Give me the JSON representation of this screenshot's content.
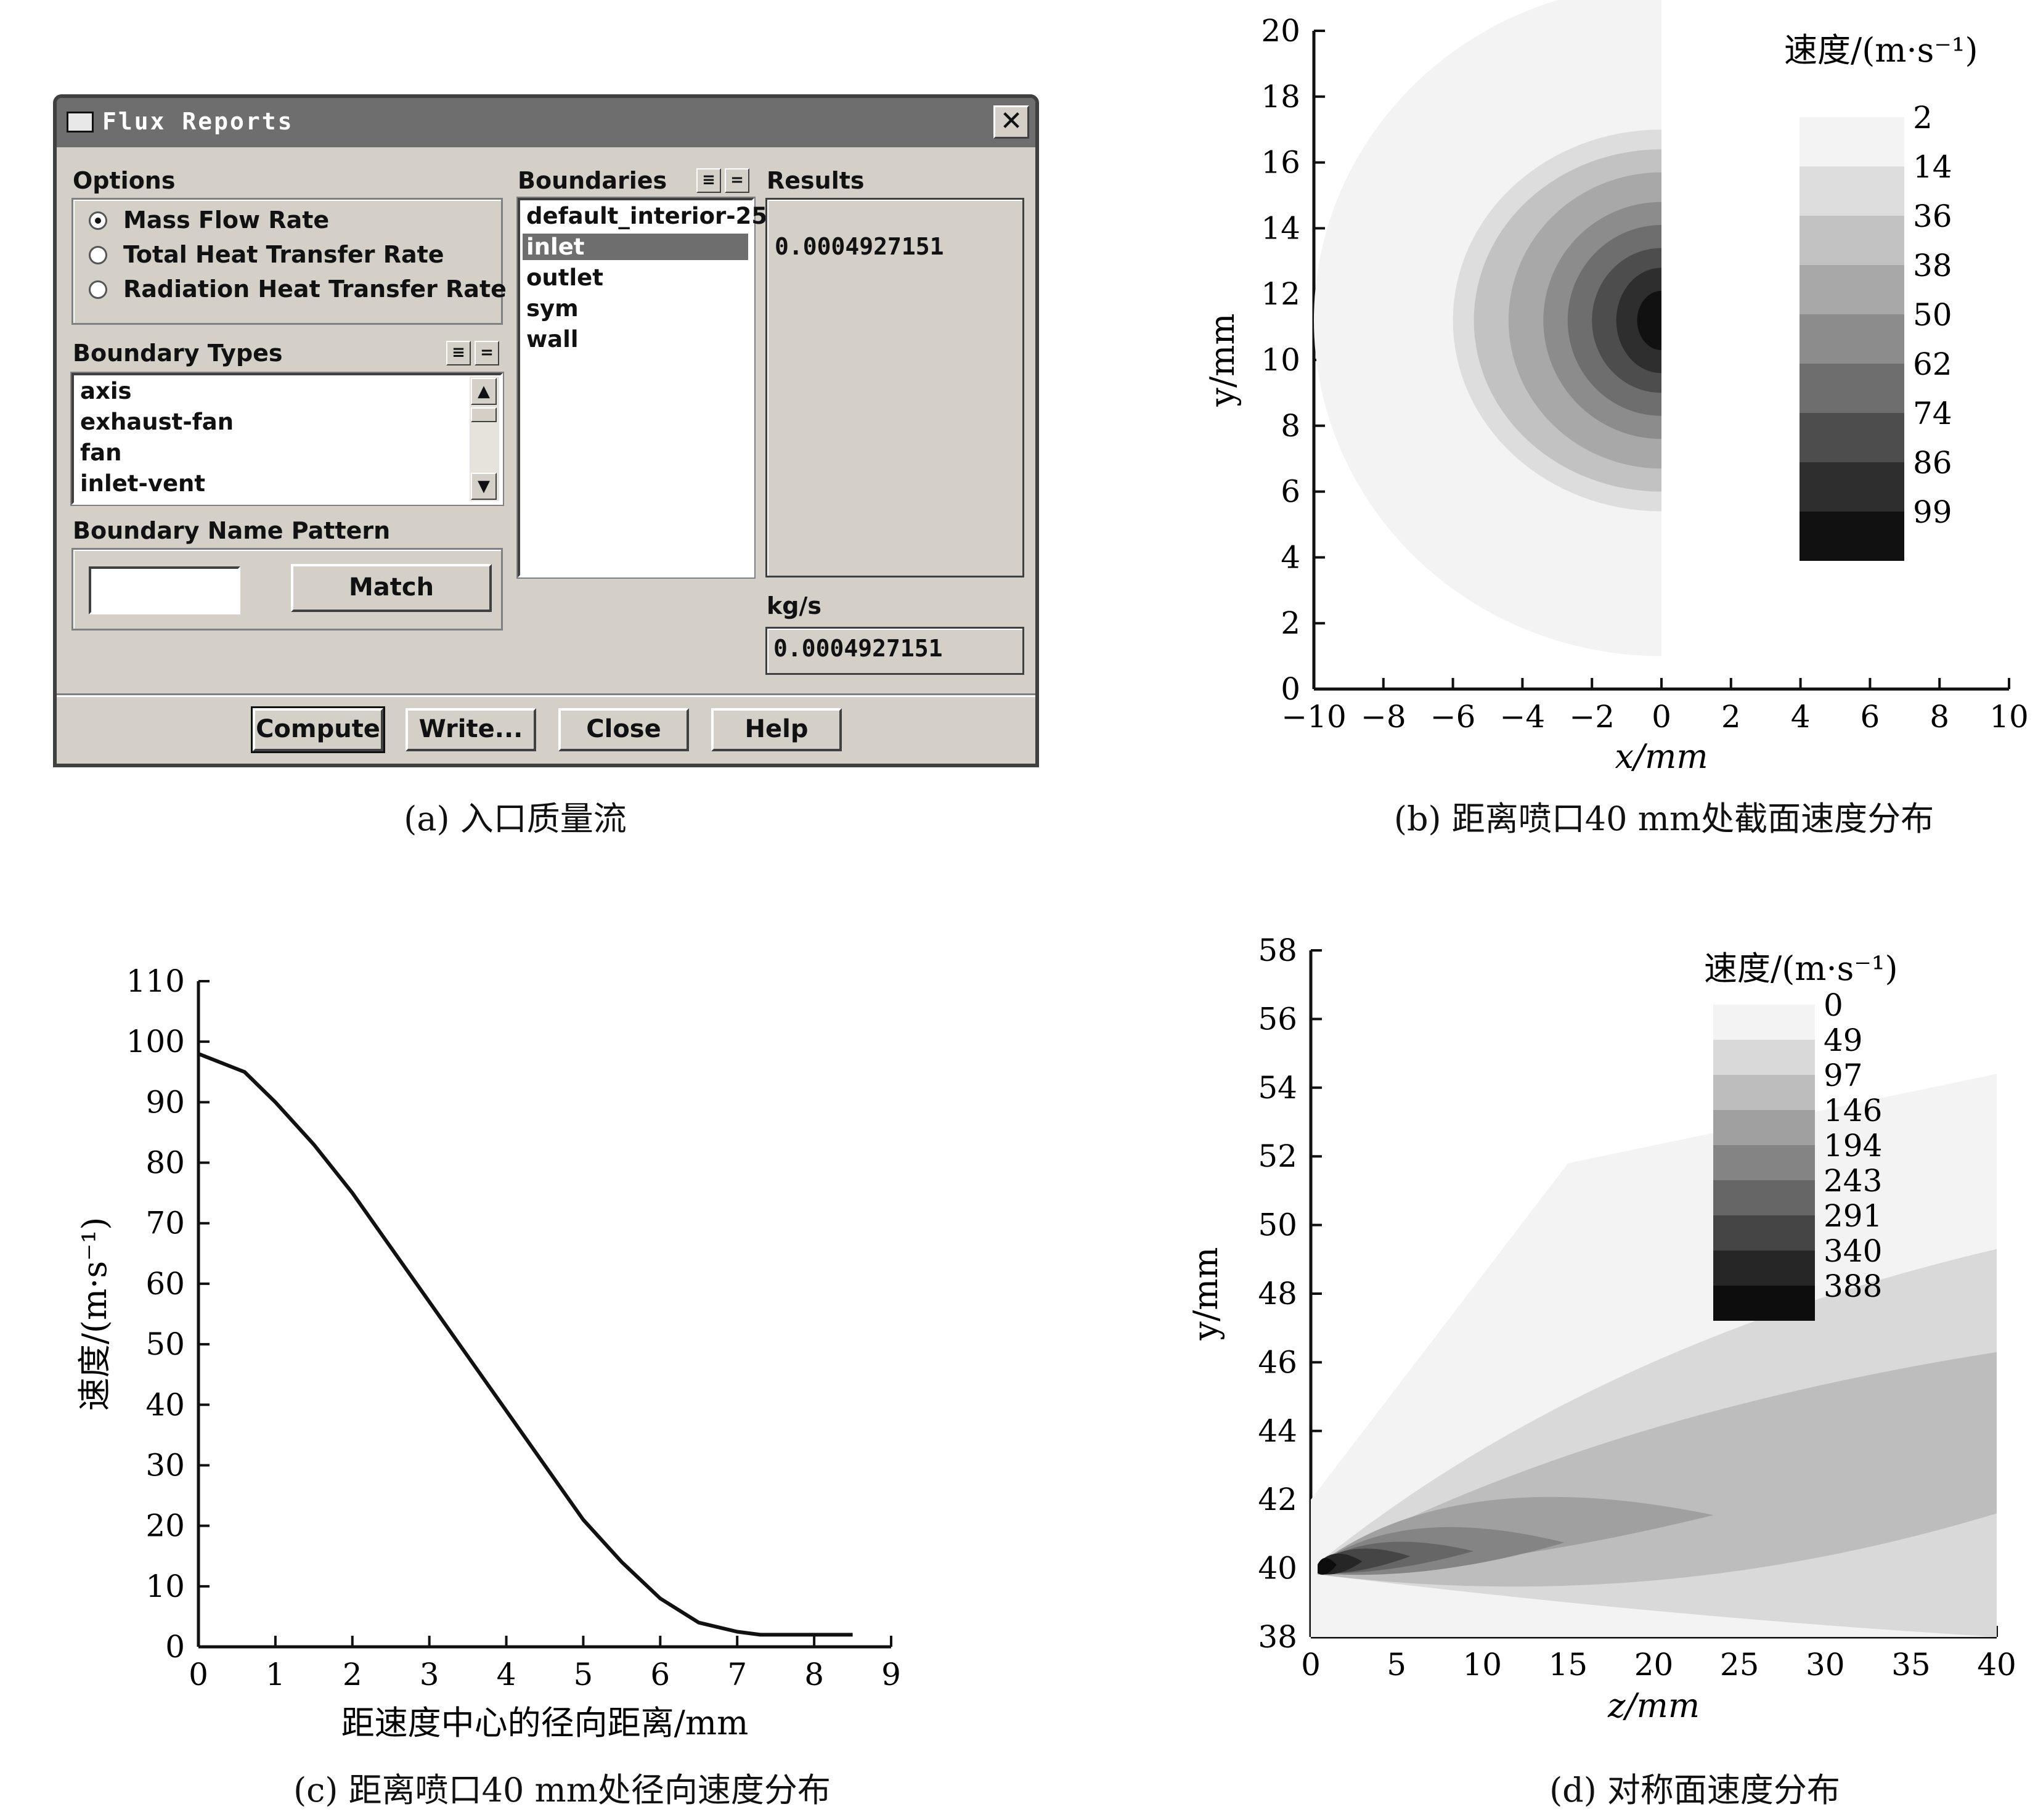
{
  "dialog": {
    "title": "Flux Reports",
    "close_icon": "close-icon",
    "options_label": "Options",
    "options": [
      {
        "label": "Mass Flow Rate",
        "selected": true
      },
      {
        "label": "Total Heat Transfer Rate",
        "selected": false
      },
      {
        "label": "Radiation Heat Transfer Rate",
        "selected": false
      }
    ],
    "boundary_types_label": "Boundary Types",
    "boundary_types": [
      "axis",
      "exhaust-fan",
      "fan",
      "inlet-vent"
    ],
    "boundary_name_pattern_label": "Boundary Name Pattern",
    "pattern_value": "",
    "match_label": "Match",
    "boundaries_label": "Boundaries",
    "boundaries": [
      "default_interior-25",
      "inlet",
      "outlet",
      "sym",
      "wall"
    ],
    "selected_boundary": "inlet",
    "results_label": "Results",
    "results_value": "0.0004927151",
    "units_label": "kg/s",
    "total_value": "0.0004927151",
    "buttons": {
      "compute": "Compute",
      "write": "Write...",
      "close": "Close",
      "help": "Help"
    }
  },
  "captions": {
    "a": "(a) 入口质量流",
    "b": "(b) 距离喷口40 mm处截面速度分布",
    "c": "(c) 距离喷口40 mm处径向速度分布",
    "d": "(d) 对称面速度分布"
  },
  "chart_data": [
    {
      "type": "heatmap",
      "panel": "b",
      "xlabel": "x/mm",
      "ylabel": "y/mm",
      "xlim": [
        -10,
        10
      ],
      "ylim": [
        0,
        20
      ],
      "xticks": [
        "−10",
        "−8",
        "−6",
        "−4",
        "−2",
        "0",
        "2",
        "4",
        "6",
        "8",
        "10"
      ],
      "yticks": [
        "0",
        "2",
        "4",
        "6",
        "8",
        "10",
        "12",
        "14",
        "16",
        "18",
        "20"
      ],
      "legend_title": "速度/(m·s⁻¹)",
      "legend_levels": [
        "2",
        "14",
        "36",
        "38",
        "50",
        "62",
        "74",
        "86",
        "99"
      ],
      "legend_colors": [
        "#f3f3f3",
        "#dddddd",
        "#c2c2c2",
        "#a8a8a8",
        "#8c8c8c",
        "#6e6e6e",
        "#4d4d4d",
        "#2e2e2e",
        "#111111"
      ],
      "contours": [
        {
          "level": "2",
          "cx": 0,
          "cy": 11.2,
          "rx": 10.0,
          "ry": 10.2
        },
        {
          "level": "14",
          "cx": 0,
          "cy": 11.2,
          "rx": 6.0,
          "ry": 5.8
        },
        {
          "level": "36",
          "cx": 0,
          "cy": 11.2,
          "rx": 5.4,
          "ry": 5.2
        },
        {
          "level": "38",
          "cx": 0,
          "cy": 11.2,
          "rx": 4.4,
          "ry": 4.5
        },
        {
          "level": "50",
          "cx": 0,
          "cy": 11.2,
          "rx": 3.4,
          "ry": 3.6
        },
        {
          "level": "62",
          "cx": 0,
          "cy": 11.2,
          "rx": 2.7,
          "ry": 2.9
        },
        {
          "level": "74",
          "cx": 0,
          "cy": 11.2,
          "rx": 2.0,
          "ry": 2.2
        },
        {
          "level": "86",
          "cx": 0,
          "cy": 11.2,
          "rx": 1.3,
          "ry": 1.6
        },
        {
          "level": "99",
          "cx": 0,
          "cy": 11.2,
          "rx": 0.7,
          "ry": 0.9
        }
      ]
    },
    {
      "type": "line",
      "panel": "c",
      "xlabel": "距速度中心的径向距离/mm",
      "ylabel": "速度/(m·s⁻¹)",
      "xlim": [
        0,
        9
      ],
      "ylim": [
        0,
        110
      ],
      "xticks": [
        "0",
        "1",
        "2",
        "3",
        "4",
        "5",
        "6",
        "7",
        "8",
        "9"
      ],
      "yticks": [
        "0",
        "10",
        "20",
        "30",
        "40",
        "50",
        "60",
        "70",
        "80",
        "90",
        "100",
        "110"
      ],
      "series": [
        {
          "x": [
            0,
            0.6,
            1.0,
            1.5,
            2.0,
            2.5,
            3.0,
            3.5,
            4.0,
            4.5,
            5.0,
            5.5,
            6.0,
            6.5,
            7.0,
            7.3,
            8.0,
            8.5
          ],
          "y": [
            98,
            95,
            90,
            83,
            75,
            66,
            57,
            48,
            39,
            30,
            21,
            14,
            8,
            4,
            2.5,
            2,
            2,
            2
          ]
        }
      ]
    },
    {
      "type": "heatmap",
      "panel": "d",
      "xlabel": "z/mm",
      "ylabel": "y/mm",
      "xlim": [
        0,
        40
      ],
      "ylim": [
        38,
        58
      ],
      "xticks": [
        "0",
        "5",
        "10",
        "15",
        "20",
        "25",
        "30",
        "35",
        "40"
      ],
      "yticks": [
        "38",
        "40",
        "42",
        "44",
        "46",
        "48",
        "50",
        "52",
        "54",
        "56",
        "58"
      ],
      "legend_title": "速度/(m·s⁻¹)",
      "legend_levels": [
        "0",
        "49",
        "97",
        "146",
        "194",
        "243",
        "291",
        "340",
        "388"
      ],
      "legend_colors": [
        "#f3f3f3",
        "#d9d9d9",
        "#bdbdbd",
        "#a0a0a0",
        "#848484",
        "#666666",
        "#454545",
        "#262626",
        "#0d0d0d"
      ]
    }
  ]
}
